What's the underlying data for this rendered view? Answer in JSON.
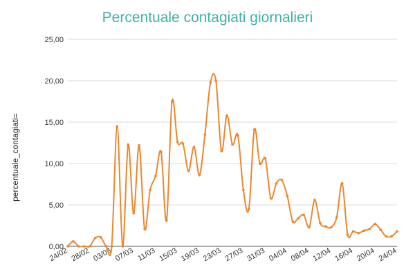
{
  "chart_data": {
    "type": "line",
    "title": "Percentuale contagiati giornalieri",
    "xlabel": "",
    "ylabel": "percentuale_contagiati=",
    "ylim": [
      0,
      25
    ],
    "yticks": [
      "0,00",
      "5,00",
      "10,00",
      "15,00",
      "20,00",
      "25,00"
    ],
    "grid": true,
    "color": "#e8882e",
    "x": [
      "24/02",
      "25/02",
      "26/02",
      "27/02",
      "28/02",
      "29/02",
      "01/03",
      "02/03",
      "03/03",
      "04/03",
      "05/03",
      "06/03",
      "07/03",
      "08/03",
      "09/03",
      "10/03",
      "11/03",
      "12/03",
      "13/03",
      "14/03",
      "15/03",
      "16/03",
      "17/03",
      "18/03",
      "19/03",
      "20/03",
      "21/03",
      "22/03",
      "23/03",
      "24/03",
      "25/03",
      "26/03",
      "27/03",
      "28/03",
      "29/03",
      "30/03",
      "31/03",
      "01/04",
      "02/04",
      "03/04",
      "04/04",
      "05/04",
      "06/04",
      "07/04",
      "08/04",
      "09/04",
      "10/04",
      "11/04",
      "12/04",
      "13/04",
      "14/04",
      "15/04",
      "16/04",
      "17/04",
      "18/04",
      "19/04",
      "20/04",
      "21/04",
      "22/04",
      "23/04",
      "24/04"
    ],
    "xticks": [
      "24/02",
      "28/02",
      "03/03",
      "07/03",
      "11/03",
      "15/03",
      "19/03",
      "23/03",
      "27/03",
      "31/03",
      "04/04",
      "08/04",
      "12/04",
      "16/04",
      "20/04",
      "24/04"
    ],
    "values": [
      0.0,
      0.6,
      0.0,
      0.0,
      0.0,
      1.0,
      1.1,
      0.0,
      0.0,
      14.5,
      0.0,
      12.3,
      4.0,
      12.2,
      2.1,
      6.8,
      8.5,
      11.4,
      3.1,
      17.5,
      12.6,
      12.4,
      9.1,
      12.0,
      8.6,
      13.5,
      19.8,
      20.0,
      11.5,
      15.8,
      12.3,
      13.4,
      6.8,
      4.5,
      14.1,
      10.0,
      10.6,
      5.8,
      7.6,
      8.0,
      6.1,
      3.0,
      3.4,
      3.8,
      2.3,
      5.6,
      2.8,
      2.4,
      2.3,
      3.5,
      7.6,
      1.4,
      1.8,
      1.6,
      1.9,
      2.1,
      2.7,
      2.0,
      1.2,
      1.2,
      1.8
    ]
  }
}
